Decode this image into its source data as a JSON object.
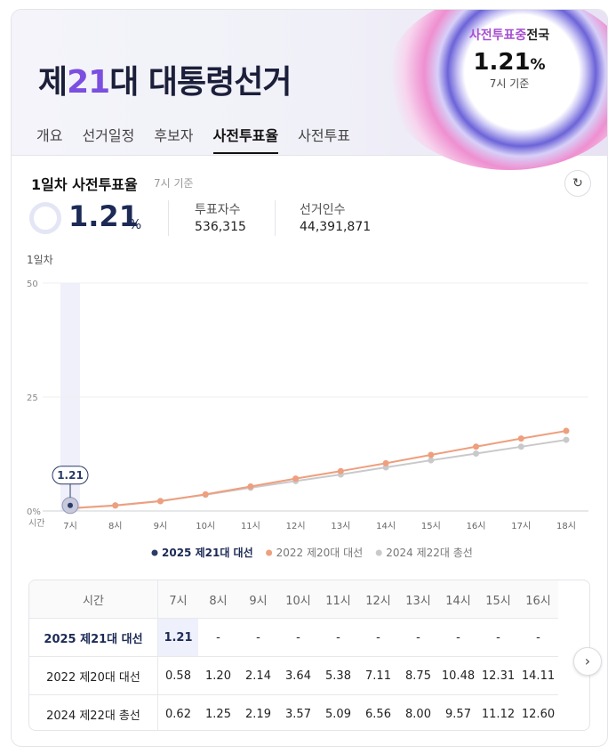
{
  "header": {
    "title_pre": "제",
    "title_num": "21",
    "title_post": "대 대통령선거",
    "badge": {
      "label_a": "사전투표중",
      "label_b": "전국",
      "value": "1.21",
      "unit": "%",
      "time": "7시 기준"
    },
    "tabs": [
      "개요",
      "선거일정",
      "후보자",
      "사전투표율",
      "사전투표"
    ],
    "active_tab": 3
  },
  "summary": {
    "title": "1일차 사전투표율",
    "time": "7시 기준",
    "rate": "1.21",
    "unit": "%",
    "voters_label": "투표자수",
    "voters": "536,315",
    "electorate_label": "선거인수",
    "electorate": "44,391,871"
  },
  "chart_data": {
    "type": "line",
    "subtitle": "1일차",
    "x_label": "시간",
    "categories": [
      "7시",
      "8시",
      "9시",
      "10시",
      "11시",
      "12시",
      "13시",
      "14시",
      "15시",
      "16시",
      "17시",
      "18시"
    ],
    "ylim": [
      0,
      50
    ],
    "yticks": [
      {
        "value": 0,
        "label": "0%"
      },
      25,
      50
    ],
    "grid": true,
    "series": [
      {
        "name": "2025 제21대 대선",
        "color": "#2b3a67",
        "values": [
          1.21,
          null,
          null,
          null,
          null,
          null,
          null,
          null,
          null,
          null,
          null,
          null
        ]
      },
      {
        "name": "2022 제20대 대선",
        "color": "#ee9f7d",
        "values": [
          0.58,
          1.2,
          2.14,
          3.64,
          5.38,
          7.11,
          8.75,
          10.48,
          12.31,
          14.11,
          15.9,
          17.57
        ]
      },
      {
        "name": "2024 제22대 총선",
        "color": "#c9c9cc",
        "values": [
          0.62,
          1.25,
          2.19,
          3.57,
          5.09,
          6.56,
          8.0,
          9.57,
          11.12,
          12.6,
          14.1,
          15.61
        ]
      }
    ]
  },
  "table": {
    "rows": [
      [
        "1.21",
        "-",
        "-",
        "-",
        "-",
        "-",
        "-",
        "-",
        "-",
        "-"
      ],
      [
        "0.58",
        "1.20",
        "2.14",
        "3.64",
        "5.38",
        "7.11",
        "8.75",
        "10.48",
        "12.31",
        "14.11"
      ],
      [
        "0.62",
        "1.25",
        "2.19",
        "3.57",
        "5.09",
        "6.56",
        "8.00",
        "9.57",
        "11.12",
        "12.60"
      ]
    ]
  }
}
